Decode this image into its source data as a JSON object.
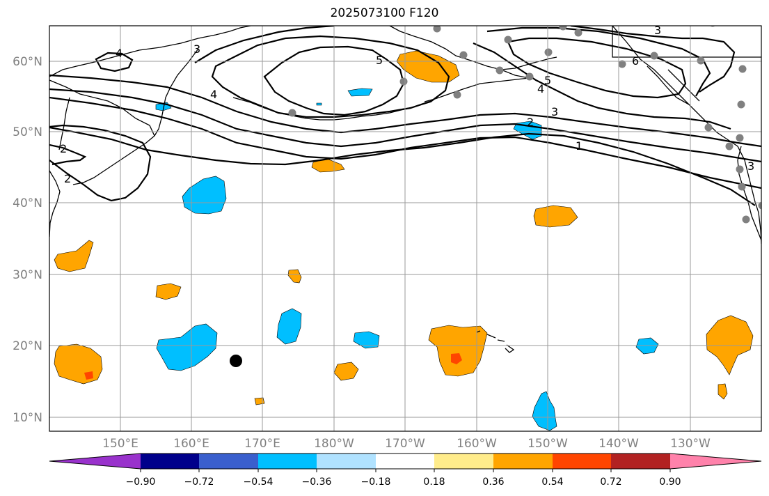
{
  "title": "2025073100 F120",
  "lat_labels": [
    "60°N",
    "50°N",
    "40°N",
    "30°N",
    "20°N",
    "10°N"
  ],
  "lon_labels": [
    "150°E",
    "160°E",
    "170°E",
    "180°W",
    "170°W",
    "160°W",
    "150°W",
    "140°W",
    "130°W"
  ],
  "colorbar": {
    "colors": [
      "#9932cc",
      "#00008b",
      "#3a5fcd",
      "#00bfff",
      "#b0e2ff",
      "#ffffff",
      "#ffec8b",
      "#ffa500",
      "#ff4500",
      "#b22222",
      "#ff82ab"
    ],
    "tick_labels": [
      "−0.90",
      "−0.72",
      "−0.54",
      "−0.36",
      "−0.18",
      "0.18",
      "0.36",
      "0.54",
      "0.72",
      "0.90"
    ]
  },
  "contour_labels": [
    "4",
    "3",
    "4",
    "5",
    "2",
    "2",
    "3",
    "4",
    "5",
    "6",
    "3",
    "2",
    "1",
    "3"
  ],
  "colors": {
    "orange": "#ffa500",
    "red": "#ff4500",
    "blue": "#00bfff",
    "grey": "#808080"
  }
}
